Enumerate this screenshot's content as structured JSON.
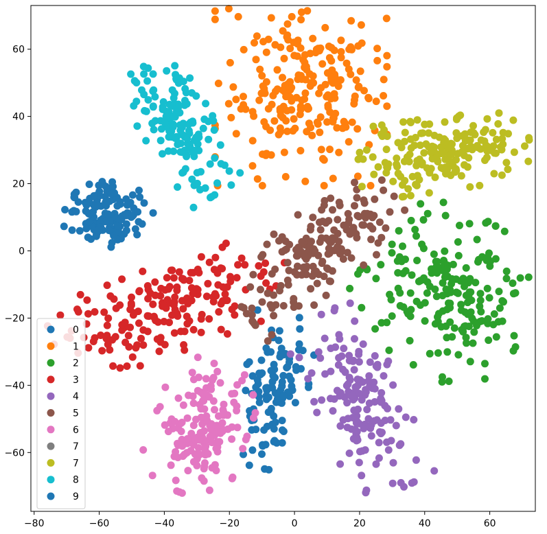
{
  "chart_data": {
    "type": "scatter",
    "title": "",
    "xlabel": "",
    "ylabel": "",
    "xlim": [
      -81,
      74
    ],
    "ylim": [
      -77.5,
      73
    ],
    "xticks": [
      -80,
      -60,
      -40,
      -20,
      0,
      20,
      40,
      60
    ],
    "yticks": [
      -60,
      -40,
      -20,
      0,
      20,
      40,
      60
    ],
    "xtick_labels": [
      "−80",
      "−60",
      "−40",
      "−20",
      "0",
      "20",
      "40",
      "60"
    ],
    "ytick_labels": [
      "−60",
      "−40",
      "−20",
      "0",
      "20",
      "40",
      "60"
    ],
    "grid": false,
    "legend_position": "bottom-left",
    "series": [
      {
        "name": "0",
        "color": "#1f77b4",
        "clusters": [
          {
            "cx": -58,
            "cy": 11,
            "sx": 7.5,
            "sy": 5.5,
            "rot": 0,
            "n": 130,
            "ring": true
          },
          {
            "cx": -6,
            "cy": -42,
            "sx": 4.5,
            "sy": 10.5,
            "rot": -10,
            "n": 110
          }
        ]
      },
      {
        "name": "1",
        "color": "#ff7f0e",
        "clusters": [
          {
            "cx": 2,
            "cy": 48,
            "sx": 12,
            "sy": 13,
            "rot": 0,
            "n": 240
          }
        ]
      },
      {
        "name": "2",
        "color": "#2ca02c",
        "clusters": [
          {
            "cx": 47,
            "cy": -12,
            "sx": 12,
            "sy": 11,
            "rot": -30,
            "n": 200
          }
        ]
      },
      {
        "name": "3",
        "color": "#d62728",
        "clusters": [
          {
            "cx": -38,
            "cy": -17,
            "sx": 17,
            "sy": 6,
            "rot": 20,
            "n": 190
          }
        ]
      },
      {
        "name": "4",
        "color": "#9467bd",
        "clusters": [
          {
            "cx": 20,
            "cy": -45,
            "sx": 6,
            "sy": 13,
            "rot": 25,
            "n": 160
          }
        ]
      },
      {
        "name": "5",
        "color": "#8c564b",
        "clusters": [
          {
            "cx": 7,
            "cy": 0,
            "sx": 13,
            "sy": 5.5,
            "rot": 38,
            "n": 180
          }
        ]
      },
      {
        "name": "6",
        "color": "#e377c2",
        "clusters": [
          {
            "cx": -29,
            "cy": -53,
            "sx": 6.5,
            "sy": 9,
            "rot": -20,
            "n": 160
          }
        ]
      },
      {
        "name": "7",
        "color": "#7f7f7f",
        "clusters": []
      },
      {
        "name": "7",
        "color": "#bcbd22",
        "clusters": [
          {
            "cx": 46,
            "cy": 29,
            "sx": 12,
            "sy": 5,
            "rot": 8,
            "n": 190
          }
        ]
      },
      {
        "name": "8",
        "color": "#17becf",
        "clusters": [
          {
            "cx": -35,
            "cy": 36,
            "sx": 5,
            "sy": 10,
            "rot": 30,
            "n": 150
          }
        ]
      },
      {
        "name": "9",
        "color": "#1f77b4",
        "clusters": []
      }
    ]
  },
  "legend": {
    "items": [
      {
        "label": "0",
        "color": "#1f77b4"
      },
      {
        "label": "1",
        "color": "#ff7f0e"
      },
      {
        "label": "2",
        "color": "#2ca02c"
      },
      {
        "label": "3",
        "color": "#d62728"
      },
      {
        "label": "4",
        "color": "#9467bd"
      },
      {
        "label": "5",
        "color": "#8c564b"
      },
      {
        "label": "6",
        "color": "#e377c2"
      },
      {
        "label": "7",
        "color": "#7f7f7f"
      },
      {
        "label": "7",
        "color": "#bcbd22"
      },
      {
        "label": "8",
        "color": "#17becf"
      },
      {
        "label": "9",
        "color": "#1f77b4"
      }
    ]
  }
}
